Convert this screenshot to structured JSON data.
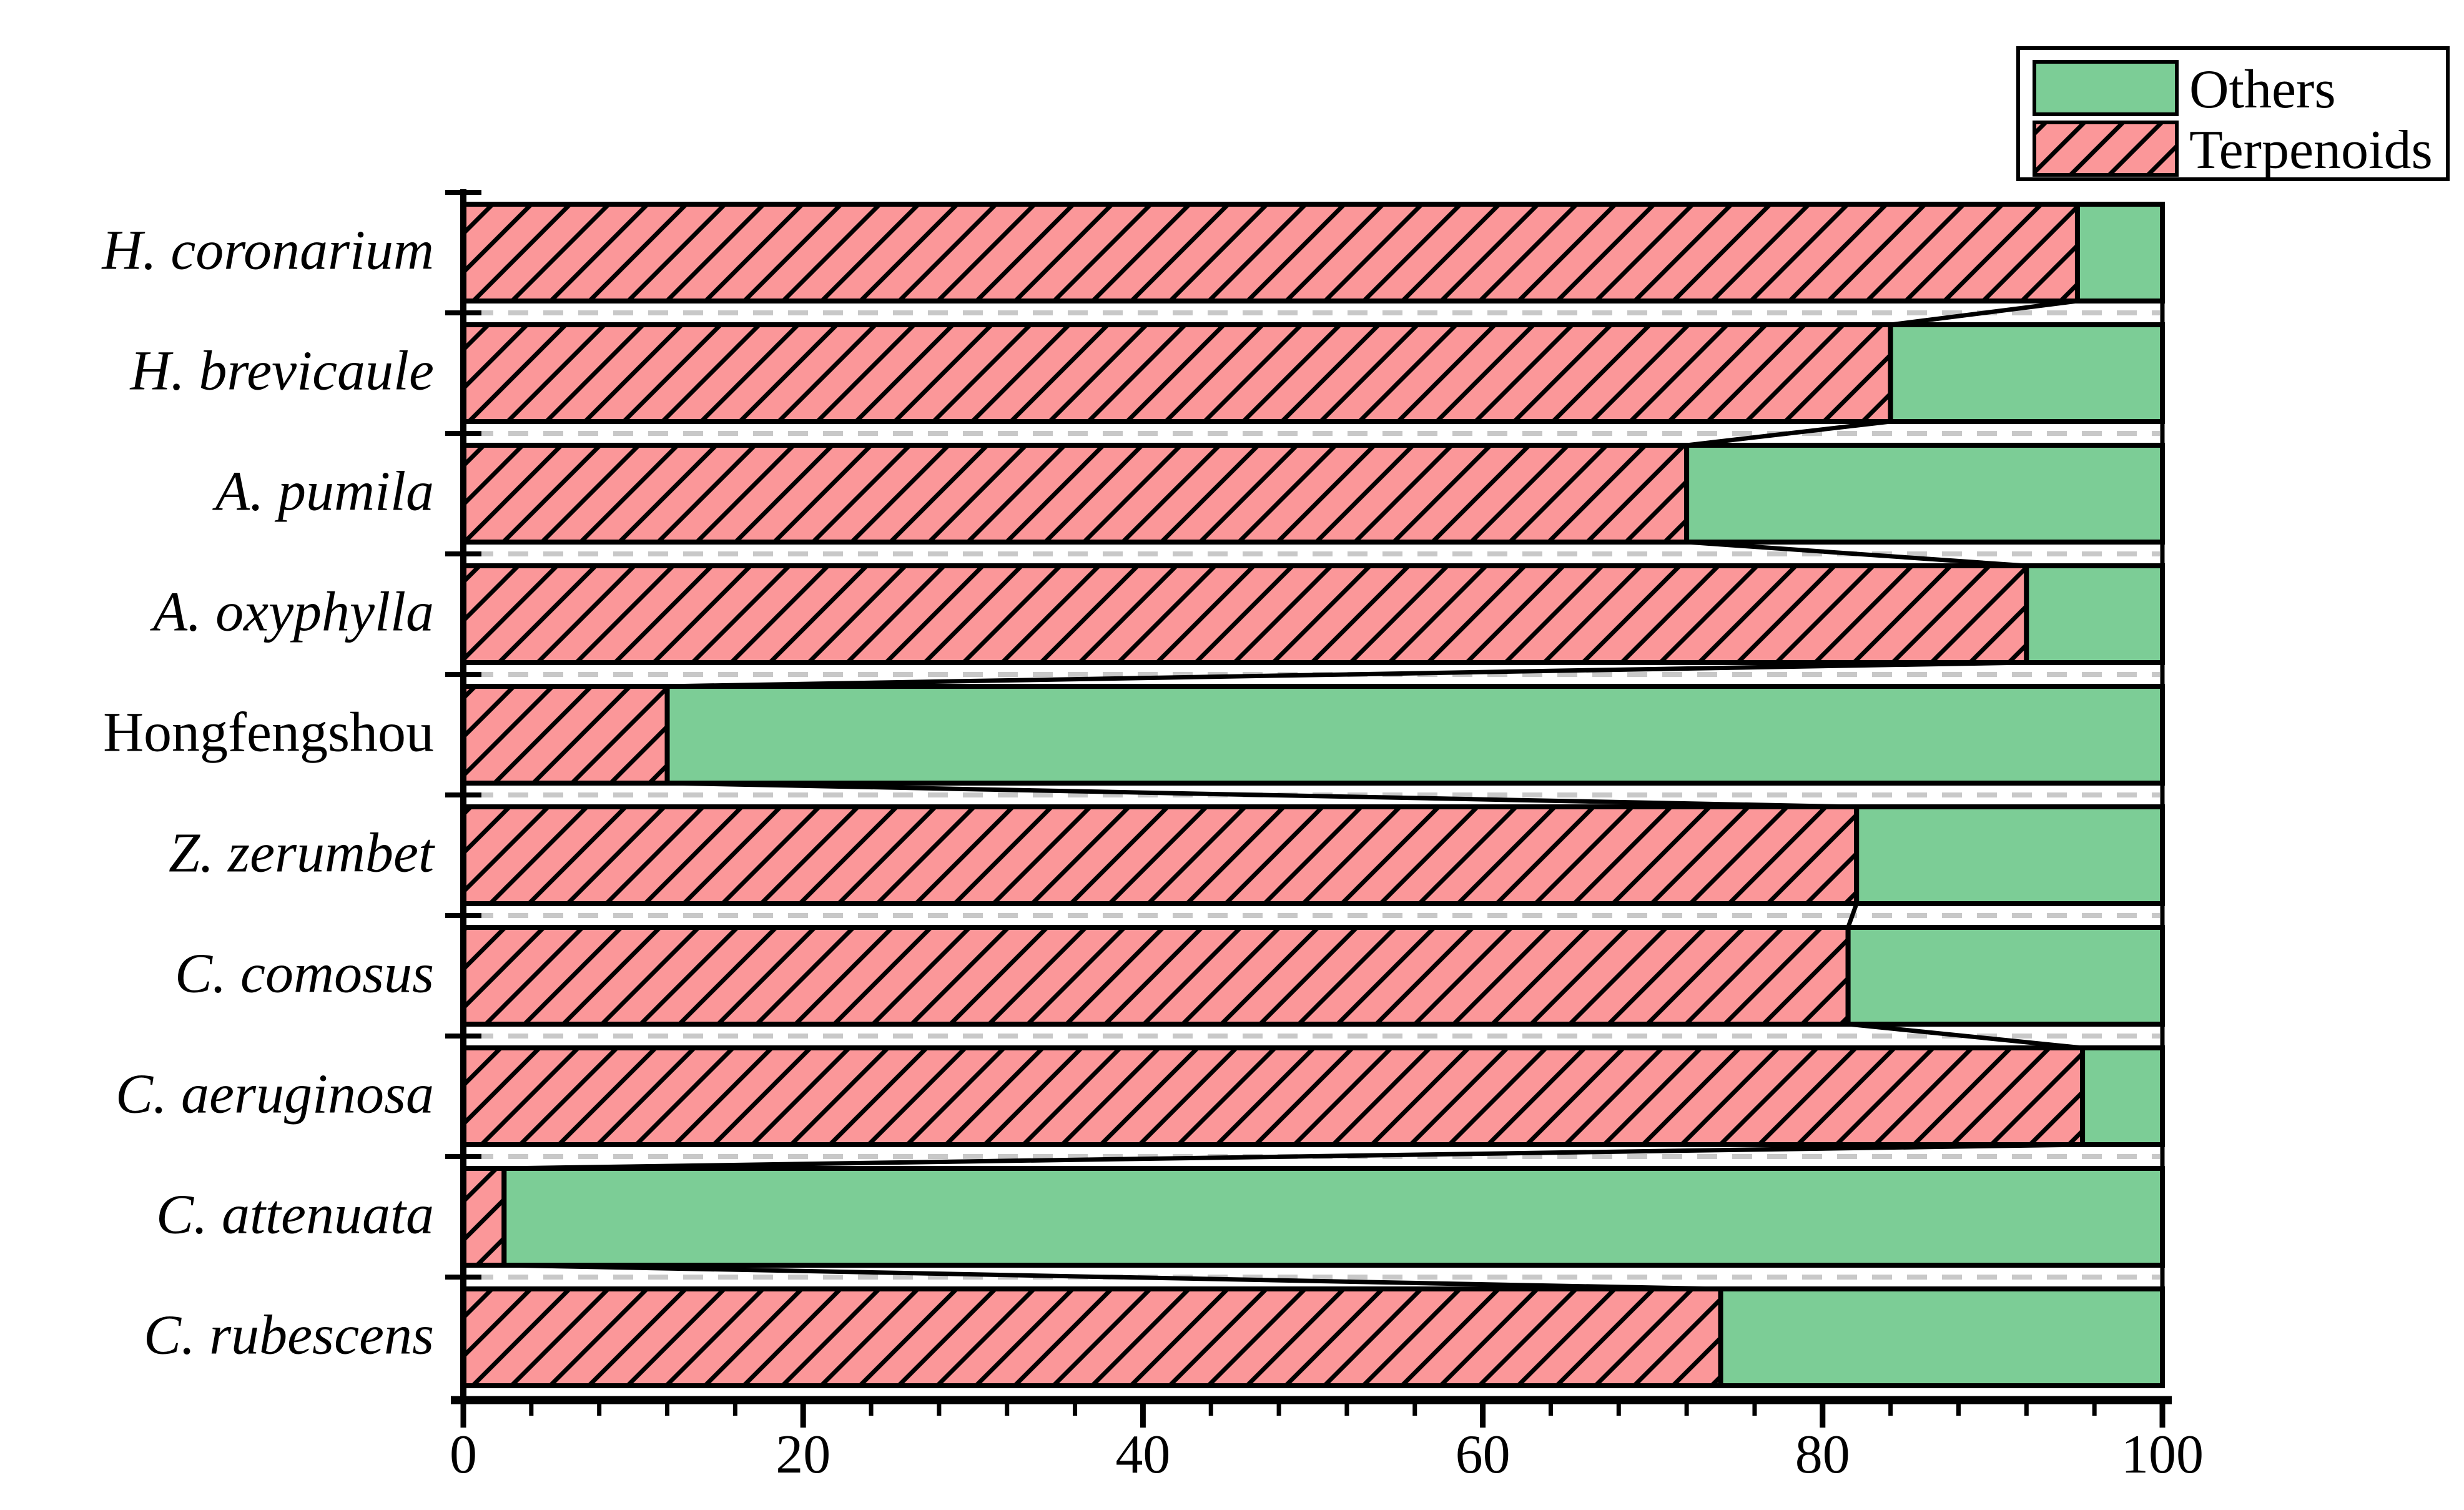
{
  "chart_data": {
    "type": "bar",
    "orientation": "horizontal",
    "stacked": true,
    "title": "",
    "xlabel": "",
    "ylabel": "",
    "xlim": [
      0,
      100
    ],
    "x_major_ticks": [
      0,
      20,
      40,
      60,
      80,
      100
    ],
    "x_tick_labels": [
      "0",
      "20",
      "40",
      "60",
      "80",
      "100"
    ],
    "x_minor_tick_step": 4,
    "categories": [
      "H. coronarium",
      "H. brevicaule",
      "A. pumila",
      "A. oxyphylla",
      "Hongfengshou",
      "Z. zerumbet",
      "C. comosus",
      "C. aeruginosa",
      "C. attenuata",
      "C. rubescens"
    ],
    "category_styles": [
      "italic",
      "italic",
      "italic",
      "italic",
      "upright",
      "italic",
      "italic",
      "italic",
      "italic",
      "italic"
    ],
    "series": [
      {
        "name": "Terpenoids",
        "values": [
          95,
          84,
          72,
          92,
          12,
          82,
          81.5,
          95.3,
          2.4,
          74
        ],
        "color": "#FB9799",
        "hatch": "diagonal-forward"
      },
      {
        "name": "Others",
        "values": [
          5,
          16,
          28,
          8,
          88,
          18,
          18.5,
          4.7,
          97.6,
          26
        ],
        "color": "#7CCD96",
        "hatch": "none"
      }
    ],
    "legend": {
      "position": "top-right",
      "entries": [
        "Others",
        "Terpenoids"
      ]
    },
    "gridlines": {
      "style": "dashed",
      "color": "#C8C8C8",
      "between_categories": true
    },
    "connectors": true,
    "bar_border_color": "#000000",
    "axis_color": "#000000"
  }
}
